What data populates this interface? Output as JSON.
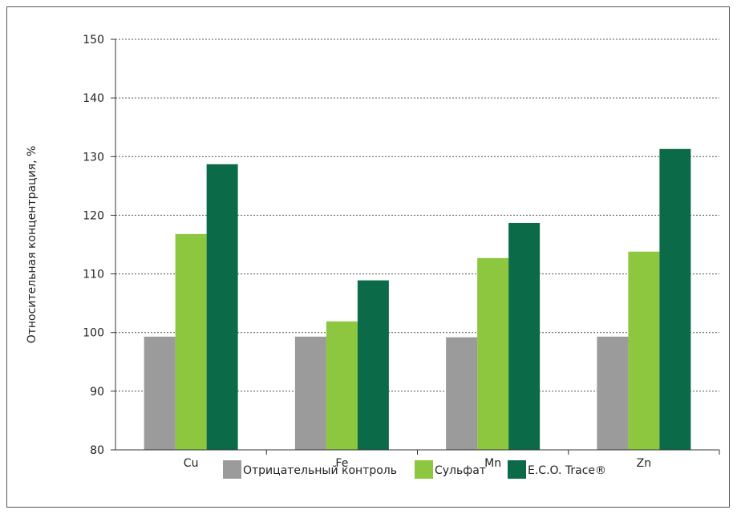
{
  "chart_data": {
    "type": "bar",
    "categories": [
      "Cu",
      "Fe",
      "Mn",
      "Zn"
    ],
    "series": [
      {
        "name": "Отрицательный контроль",
        "color": "#9b9b9b",
        "values": [
          99.3,
          99.3,
          99.2,
          99.3
        ]
      },
      {
        "name": "Сульфат",
        "color": "#8dc63f",
        "values": [
          116.8,
          101.9,
          112.7,
          113.8
        ]
      },
      {
        "name": "E.C.O. Trace®",
        "color": "#0b6b48",
        "values": [
          128.7,
          108.9,
          118.7,
          131.3
        ]
      }
    ],
    "ylabel": "Относительная концентрация, %",
    "ylim": [
      80,
      150
    ],
    "yticks": [
      80,
      90,
      100,
      110,
      120,
      130,
      140,
      150
    ],
    "grid": true,
    "legend_position": "bottom"
  }
}
